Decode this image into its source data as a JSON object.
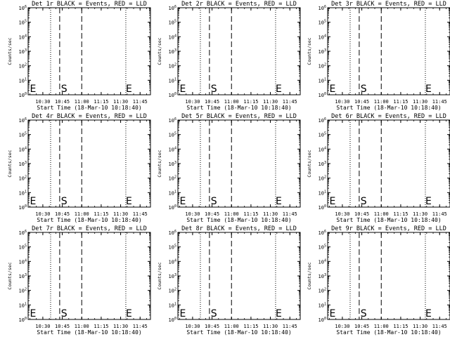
{
  "xlabel": "Start Time (18-Mar-10 10:18:40)",
  "ylabel": "Counts/sec",
  "x_tick_labels": [
    "10:30",
    "10:45",
    "11:00",
    "11:15",
    "11:30",
    "11:45"
  ],
  "y_tick_labels": [
    "10^0",
    "10^1",
    "10^2",
    "10^3",
    "10^4",
    "10^5",
    "10^6"
  ],
  "markers": {
    "start": "S",
    "end": "E"
  },
  "chart_data": [
    {
      "type": "line",
      "title": "Det 1r BLACK = Events, RED = LLD",
      "xlabel": "Start Time (18-Mar-10 10:18:40)",
      "ylabel": "Counts/sec",
      "y_scale": "log",
      "ylim": [
        1,
        1000000
      ],
      "xlim": [
        "10:18:40",
        "11:53:00"
      ],
      "dotted_lines": [
        "10:36",
        "11:34",
        "11:53"
      ],
      "dashed_lines": [
        "10:43",
        "11:00"
      ],
      "markers": [
        {
          "label": "E",
          "x": "10:20"
        },
        {
          "label": "S",
          "x": "10:44"
        },
        {
          "label": "E",
          "x": "11:34"
        }
      ],
      "series": []
    },
    {
      "type": "line",
      "title": "Det 2r BLACK = Events, RED = LLD",
      "xlabel": "Start Time (18-Mar-10 10:18:40)",
      "ylabel": "Counts/sec",
      "y_scale": "log",
      "ylim": [
        1,
        1000000
      ],
      "xlim": [
        "10:18:40",
        "11:53:00"
      ],
      "dotted_lines": [
        "10:36",
        "11:34",
        "11:53"
      ],
      "dashed_lines": [
        "10:43",
        "11:00"
      ],
      "markers": [
        {
          "label": "E",
          "x": "10:20"
        },
        {
          "label": "S",
          "x": "10:44"
        },
        {
          "label": "E",
          "x": "11:34"
        }
      ],
      "series": []
    },
    {
      "type": "line",
      "title": "Det 3r BLACK = Events, RED = LLD",
      "xlabel": "Start Time (18-Mar-10 10:18:40)",
      "ylabel": "Counts/sec",
      "y_scale": "log",
      "ylim": [
        1,
        1000000
      ],
      "xlim": [
        "10:18:40",
        "11:53:00"
      ],
      "dotted_lines": [
        "10:36",
        "11:34",
        "11:53"
      ],
      "dashed_lines": [
        "10:43",
        "11:00"
      ],
      "markers": [
        {
          "label": "E",
          "x": "10:20"
        },
        {
          "label": "S",
          "x": "10:44"
        },
        {
          "label": "E",
          "x": "11:34"
        }
      ],
      "series": []
    },
    {
      "type": "line",
      "title": "Det 4r BLACK = Events, RED = LLD",
      "xlabel": "Start Time (18-Mar-10 10:18:40)",
      "ylabel": "Counts/sec",
      "y_scale": "log",
      "ylim": [
        1,
        1000000
      ],
      "xlim": [
        "10:18:40",
        "11:53:00"
      ],
      "dotted_lines": [
        "10:36",
        "11:34",
        "11:53"
      ],
      "dashed_lines": [
        "10:43",
        "11:00"
      ],
      "markers": [
        {
          "label": "E",
          "x": "10:20"
        },
        {
          "label": "S",
          "x": "10:44"
        },
        {
          "label": "E",
          "x": "11:34"
        }
      ],
      "series": []
    },
    {
      "type": "line",
      "title": "Det 5r BLACK = Events, RED = LLD",
      "xlabel": "Start Time (18-Mar-10 10:18:40)",
      "ylabel": "Counts/sec",
      "y_scale": "log",
      "ylim": [
        1,
        1000000
      ],
      "xlim": [
        "10:18:40",
        "11:53:00"
      ],
      "dotted_lines": [
        "10:36",
        "11:34",
        "11:53"
      ],
      "dashed_lines": [
        "10:43",
        "11:00"
      ],
      "markers": [
        {
          "label": "E",
          "x": "10:20"
        },
        {
          "label": "S",
          "x": "10:44"
        },
        {
          "label": "E",
          "x": "11:34"
        }
      ],
      "series": []
    },
    {
      "type": "line",
      "title": "Det 6r BLACK = Events, RED = LLD",
      "xlabel": "Start Time (18-Mar-10 10:18:40)",
      "ylabel": "Counts/sec",
      "y_scale": "log",
      "ylim": [
        1,
        1000000
      ],
      "xlim": [
        "10:18:40",
        "11:53:00"
      ],
      "dotted_lines": [
        "10:36",
        "11:34",
        "11:53"
      ],
      "dashed_lines": [
        "10:43",
        "11:00"
      ],
      "markers": [
        {
          "label": "E",
          "x": "10:20"
        },
        {
          "label": "S",
          "x": "10:44"
        },
        {
          "label": "E",
          "x": "11:34"
        }
      ],
      "series": []
    },
    {
      "type": "line",
      "title": "Det 7r BLACK = Events, RED = LLD",
      "xlabel": "Start Time (18-Mar-10 10:18:40)",
      "ylabel": "Counts/sec",
      "y_scale": "log",
      "ylim": [
        1,
        1000000
      ],
      "xlim": [
        "10:18:40",
        "11:53:00"
      ],
      "dotted_lines": [
        "10:36",
        "11:34",
        "11:53"
      ],
      "dashed_lines": [
        "10:43",
        "11:00"
      ],
      "markers": [
        {
          "label": "E",
          "x": "10:20"
        },
        {
          "label": "S",
          "x": "10:44"
        },
        {
          "label": "E",
          "x": "11:34"
        }
      ],
      "series": []
    },
    {
      "type": "line",
      "title": "Det 8r BLACK = Events, RED = LLD",
      "xlabel": "Start Time (18-Mar-10 10:18:40)",
      "ylabel": "Counts/sec",
      "y_scale": "log",
      "ylim": [
        1,
        1000000
      ],
      "xlim": [
        "10:18:40",
        "11:53:00"
      ],
      "dotted_lines": [
        "10:36",
        "11:34",
        "11:53"
      ],
      "dashed_lines": [
        "10:43",
        "11:00"
      ],
      "markers": [
        {
          "label": "E",
          "x": "10:20"
        },
        {
          "label": "S",
          "x": "10:44"
        },
        {
          "label": "E",
          "x": "11:34"
        }
      ],
      "series": []
    },
    {
      "type": "line",
      "title": "Det 9r BLACK = Events, RED = LLD",
      "xlabel": "Start Time (18-Mar-10 10:18:40)",
      "ylabel": "Counts/sec",
      "y_scale": "log",
      "ylim": [
        1,
        1000000
      ],
      "xlim": [
        "10:18:40",
        "11:53:00"
      ],
      "dotted_lines": [
        "10:36",
        "11:34",
        "11:53"
      ],
      "dashed_lines": [
        "10:43",
        "11:00"
      ],
      "markers": [
        {
          "label": "E",
          "x": "10:20"
        },
        {
          "label": "S",
          "x": "10:44"
        },
        {
          "label": "E",
          "x": "11:34"
        }
      ],
      "series": []
    }
  ]
}
